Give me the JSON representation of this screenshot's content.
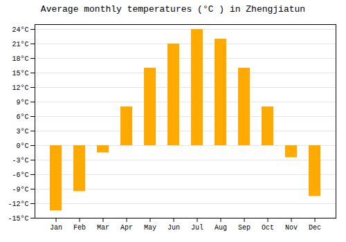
{
  "chart_data": {
    "type": "bar",
    "title": "Average monthly temperatures (°C ) in Zhengjiatun",
    "categories": [
      "Jan",
      "Feb",
      "Mar",
      "Apr",
      "May",
      "Jun",
      "Jul",
      "Aug",
      "Sep",
      "Oct",
      "Nov",
      "Dec"
    ],
    "values": [
      -13.5,
      -9.5,
      -1.5,
      8,
      16,
      21,
      24,
      22,
      16,
      8,
      -2.5,
      -10.5
    ],
    "color": "#FFAA00",
    "ylim": [
      -15,
      25
    ],
    "yticks": [
      {
        "value": -15,
        "label": "-15°C"
      },
      {
        "value": -12,
        "label": "-12°C"
      },
      {
        "value": -9,
        "label": "-9°C"
      },
      {
        "value": -6,
        "label": "-6°C"
      },
      {
        "value": -3,
        "label": "-3°C"
      },
      {
        "value": 0,
        "label": "0°C"
      },
      {
        "value": 3,
        "label": "3°C"
      },
      {
        "value": 6,
        "label": "6°C"
      },
      {
        "value": 9,
        "label": "9°C"
      },
      {
        "value": 12,
        "label": "12°C"
      },
      {
        "value": 15,
        "label": "15°C"
      },
      {
        "value": 18,
        "label": "18°C"
      },
      {
        "value": 21,
        "label": "21°C"
      },
      {
        "value": 24,
        "label": "24°C"
      }
    ],
    "grid": true
  }
}
